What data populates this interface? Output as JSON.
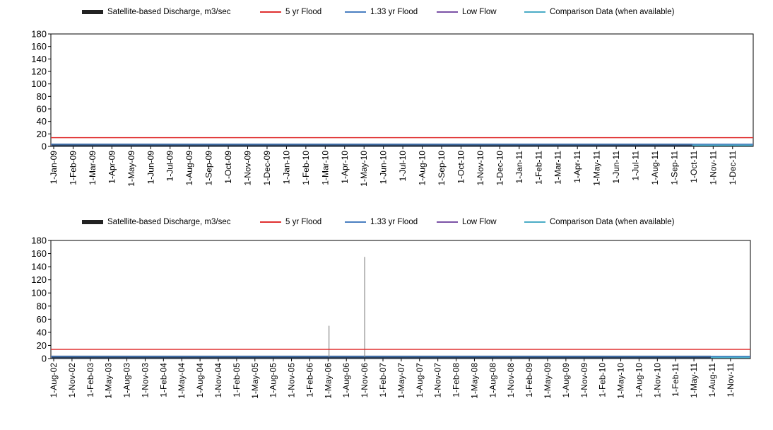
{
  "legend": [
    {
      "label": "Satellite-based Discharge, m3/sec",
      "color": "#222222",
      "style": "thick"
    },
    {
      "label": "5 yr Flood",
      "color": "#e03030",
      "style": "thin"
    },
    {
      "label": "1.33 yr Flood",
      "color": "#4a7fc1",
      "style": "thin"
    },
    {
      "label": "Low Flow",
      "color": "#7b52a6",
      "style": "thin"
    },
    {
      "label": "Comparison Data (when available)",
      "color": "#4bacc6",
      "style": "thin"
    }
  ],
  "chart_data": [
    {
      "type": "line",
      "ylim": [
        0,
        180
      ],
      "yticks": [
        "180",
        "160",
        "140",
        "120",
        "100",
        "80",
        "60",
        "40",
        "20",
        "0"
      ],
      "thresholds": {
        "five_yr_flood": 14,
        "one33_yr_flood": 3.5,
        "low_flow": 2.5
      },
      "baseline_discharge": 2.3,
      "comparison_from_index": 33,
      "categories": [
        "1-Jan-09",
        "1-Feb-09",
        "1-Mar-09",
        "1-Apr-09",
        "1-May-09",
        "1-Jun-09",
        "1-Jul-09",
        "1-Aug-09",
        "1-Sep-09",
        "1-Oct-09",
        "1-Nov-09",
        "1-Dec-09",
        "1-Jan-10",
        "1-Feb-10",
        "1-Mar-10",
        "1-Apr-10",
        "1-May-10",
        "1-Jun-10",
        "1-Jul-10",
        "1-Aug-10",
        "1-Sep-10",
        "1-Oct-10",
        "1-Nov-10",
        "1-Dec-10",
        "1-Jan-11",
        "1-Feb-11",
        "1-Mar-11",
        "1-Apr-11",
        "1-May-11",
        "1-Jun-11",
        "1-Jul-11",
        "1-Aug-11",
        "1-Sep-11",
        "1-Oct-11",
        "1-Nov-11",
        "1-Dec-11"
      ],
      "spikes": []
    },
    {
      "type": "line",
      "ylim": [
        0,
        180
      ],
      "yticks": [
        "180",
        "160",
        "140",
        "120",
        "100",
        "80",
        "60",
        "40",
        "20",
        "0"
      ],
      "thresholds": {
        "five_yr_flood": 14,
        "one33_yr_flood": 3.5,
        "low_flow": 2.5
      },
      "baseline_discharge": 2.3,
      "comparison_from_index": 36,
      "categories": [
        "1-Aug-02",
        "1-Nov-02",
        "1-Feb-03",
        "1-May-03",
        "1-Aug-03",
        "1-Nov-03",
        "1-Feb-04",
        "1-May-04",
        "1-Aug-04",
        "1-Nov-04",
        "1-Feb-05",
        "1-May-05",
        "1-Aug-05",
        "1-Nov-05",
        "1-Feb-06",
        "1-May-06",
        "1-Aug-06",
        "1-Nov-06",
        "1-Feb-07",
        "1-May-07",
        "1-Aug-07",
        "1-Nov-07",
        "1-Feb-08",
        "1-May-08",
        "1-Aug-08",
        "1-Nov-08",
        "1-Feb-09",
        "1-May-09",
        "1-Aug-09",
        "1-Nov-09",
        "1-Feb-10",
        "1-May-10",
        "1-Aug-10",
        "1-Nov-10",
        "1-Feb-11",
        "1-May-11",
        "1-Aug-11",
        "1-Nov-11"
      ],
      "spikes": [
        {
          "position": 15.05,
          "value": 50
        },
        {
          "position": 17.0,
          "value": 155
        }
      ]
    }
  ]
}
